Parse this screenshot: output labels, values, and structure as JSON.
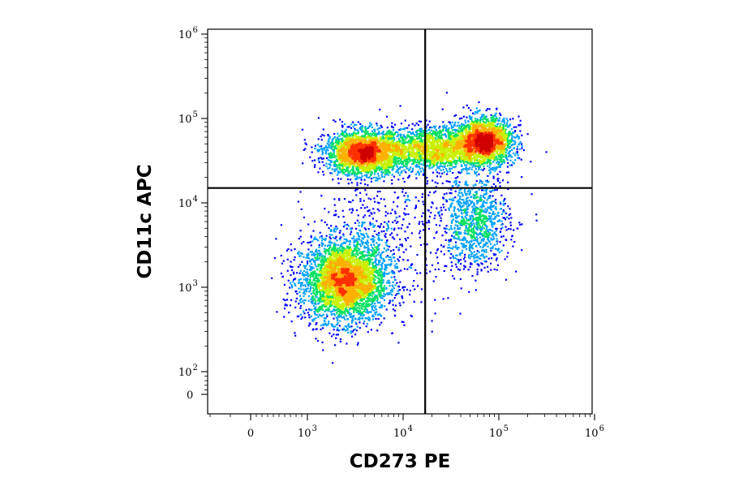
{
  "chart_data": {
    "type": "scatter",
    "style": "flow-cytometry-density-dot-plot",
    "xlabel": "CD273 PE",
    "ylabel": "CD11c APC",
    "x_scale": "biexponential",
    "y_scale": "biexponential",
    "xlim": [
      -100,
      1000000
    ],
    "ylim": [
      -100,
      1000000
    ],
    "x_ticks": [
      {
        "base": "0",
        "exp": ""
      },
      {
        "base": "10",
        "exp": "3"
      },
      {
        "base": "10",
        "exp": "4"
      },
      {
        "base": "10",
        "exp": "5"
      },
      {
        "base": "10",
        "exp": "6"
      }
    ],
    "y_ticks": [
      {
        "base": "0",
        "exp": ""
      },
      {
        "base": "10",
        "exp": "2"
      },
      {
        "base": "10",
        "exp": "3"
      },
      {
        "base": "10",
        "exp": "4"
      },
      {
        "base": "10",
        "exp": "5"
      },
      {
        "base": "10",
        "exp": "6"
      }
    ],
    "quadrant_gates": {
      "x": 17000,
      "y": 15000
    },
    "populations": [
      {
        "center": [
          2400,
          1200
        ],
        "spread_log": [
          0.22,
          0.24
        ],
        "events": 3600
      },
      {
        "center": [
          3800,
          40000
        ],
        "spread_log": [
          0.2,
          0.13
        ],
        "events": 2400
      },
      {
        "center": [
          20000,
          45000
        ],
        "spread_log": [
          0.28,
          0.13
        ],
        "events": 1800
      },
      {
        "center": [
          70000,
          55000
        ],
        "spread_log": [
          0.15,
          0.14
        ],
        "events": 2000
      },
      {
        "center": [
          55000,
          6000
        ],
        "spread_log": [
          0.18,
          0.28
        ],
        "events": 1000
      },
      {
        "center": [
          6000,
          4000
        ],
        "spread_log": [
          0.35,
          0.4
        ],
        "events": 500
      }
    ],
    "color_scale": [
      "#0000ff",
      "#00a0ff",
      "#00e060",
      "#c8f000",
      "#ffb000",
      "#ff3000",
      "#d00000"
    ],
    "grid": false
  }
}
